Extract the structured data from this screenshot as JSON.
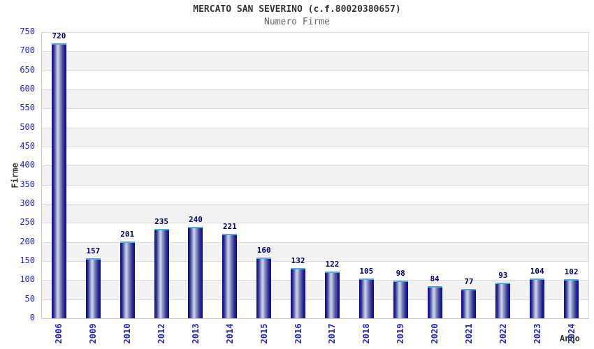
{
  "header": {
    "title": "MERCATO SAN SEVERINO (c.f.80020380657)",
    "subtitle": "Numero Firme"
  },
  "chart_data": {
    "type": "bar",
    "title": "MERCATO SAN SEVERINO (c.f.80020380657)",
    "subtitle": "Numero Firme",
    "xlabel": "Anno",
    "ylabel": "Firme",
    "categories": [
      "2006",
      "2009",
      "2010",
      "2012",
      "2013",
      "2014",
      "2015",
      "2016",
      "2017",
      "2018",
      "2019",
      "2020",
      "2021",
      "2022",
      "2023",
      "2024"
    ],
    "values": [
      720,
      157,
      201,
      235,
      240,
      221,
      160,
      132,
      122,
      105,
      98,
      84,
      77,
      93,
      104,
      102
    ],
    "ylim": [
      0,
      750
    ],
    "ytick_step": 50,
    "grid": true,
    "legend": "none",
    "band_fill": "alternating",
    "colors": {
      "bar_edge": "#0d0dae",
      "bar_dark": "#2e2e84",
      "bar_mid": "#7a84bd",
      "bar_light": "#c3cae3",
      "bar_cap": "#58a8dc",
      "tick_label": "#2222cc",
      "value_label": "#000066",
      "band_gray": "#f2f2f2",
      "band_white": "#ffffff",
      "gridline": "#dcdcdc",
      "axis_line": "#c9c9c9",
      "title_color": "#333333",
      "subtitle_color": "#666666"
    }
  }
}
